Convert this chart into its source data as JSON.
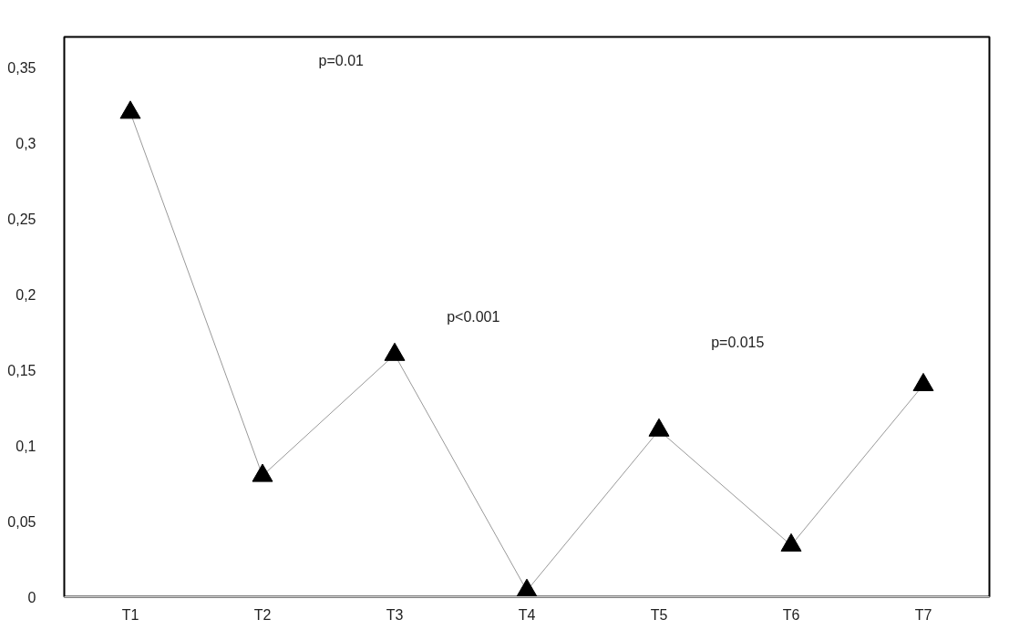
{
  "chart_data": {
    "type": "line",
    "categories": [
      "T1",
      "T2",
      "T3",
      "T4",
      "T5",
      "T6",
      "T7"
    ],
    "series": [
      {
        "color": "#000000",
        "values": [
          0.32,
          0.08,
          0.16,
          0.004,
          0.11,
          0.034,
          0.14
        ]
      }
    ],
    "ylim": [
      0,
      0.37
    ],
    "yticks": [
      0,
      {
        "value": 0.05,
        "label": "0,05"
      },
      {
        "value": 0.1,
        "label": "0,1"
      },
      {
        "value": 0.15,
        "label": "0,15"
      },
      {
        "value": 0.2,
        "label": "0,2"
      },
      {
        "value": 0.25,
        "label": "0,25"
      },
      {
        "value": 0.3,
        "label": "0,3"
      },
      {
        "value": 0.35,
        "label": "0,35"
      }
    ],
    "annotations": [
      "p=0.01",
      "p<0.001",
      "p=0.015"
    ],
    "marker": "triangle",
    "line_style": "solid",
    "grid": false
  }
}
